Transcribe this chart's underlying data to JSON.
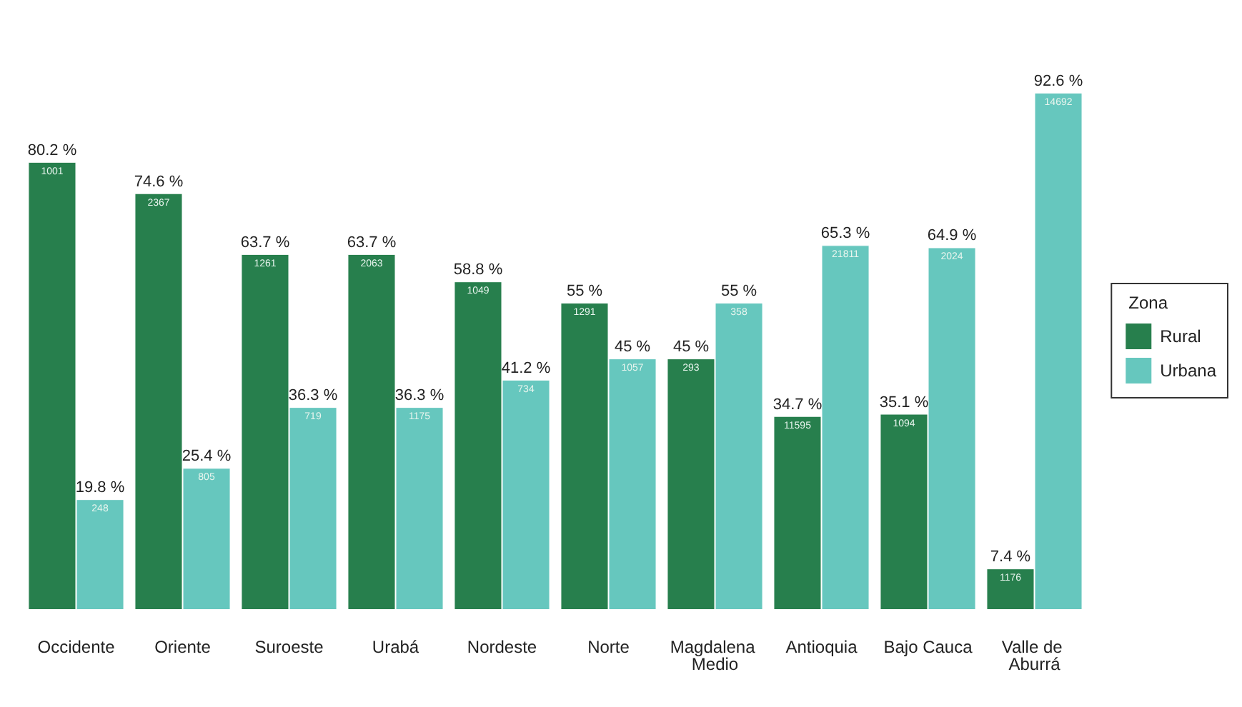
{
  "chart_data": {
    "type": "bar",
    "legend_title": "Zona",
    "legend": "right",
    "categories": [
      "Occidente",
      "Oriente",
      "Suroeste",
      "Urabá",
      "Nordeste",
      "Norte",
      "Magdalena Medio",
      "Antioquia",
      "Bajo Cauca",
      "Valle de Aburrá"
    ],
    "series": [
      {
        "name": "Rural",
        "color": "#277f4d",
        "values": [
          80.2,
          74.6,
          63.7,
          63.7,
          58.8,
          55,
          45,
          34.7,
          35.1,
          7.4
        ],
        "value_labels": [
          "80.2 %",
          "74.6 %",
          "63.7 %",
          "63.7 %",
          "58.8 %",
          "55 %",
          "45 %",
          "34.7 %",
          "35.1 %",
          "7.4 %"
        ]
      },
      {
        "name": "Urbana",
        "color": "#66c7be",
        "values": [
          19.8,
          25.4,
          36.3,
          36.3,
          41.2,
          45,
          55,
          65.3,
          64.9,
          92.6
        ],
        "value_labels": [
          "19.8 %",
          "25.4 %",
          "36.3 %",
          "36.3 %",
          "41.2 %",
          "45 %",
          "55 %",
          "65.3 %",
          "64.9 %",
          "92.6 %"
        ]
      }
    ],
    "annotations": [
      {
        "text": "1001",
        "x": "Occidente",
        "y": 80.2
      },
      {
        "text": "248",
        "x": "Occidente",
        "y": 19.8
      },
      {
        "text": "2367",
        "x": "Oriente",
        "y": 74.6
      },
      {
        "text": "805",
        "x": "Oriente",
        "y": 25.4
      },
      {
        "text": "1261",
        "x": "Suroeste",
        "y": 63.7
      },
      {
        "text": "719",
        "x": "Suroeste",
        "y": 36.3
      },
      {
        "text": "2063",
        "x": "Urabá",
        "y": 63.7
      },
      {
        "text": "1175",
        "x": "Urabá",
        "y": 36.3
      },
      {
        "text": "1049",
        "x": "Nordeste",
        "y": 58.8
      },
      {
        "text": "734",
        "x": "Nordeste",
        "y": 41.2
      },
      {
        "text": "1291",
        "x": "Norte",
        "y": 55
      },
      {
        "text": "1057",
        "x": "Norte",
        "y": 45
      },
      {
        "text": "293",
        "x": "Magdalena Medio",
        "y": 45
      },
      {
        "text": "358",
        "x": "Magdalena Medio",
        "y": 55
      },
      {
        "text": "11595",
        "x": "Antioquia",
        "y": 34.7
      },
      {
        "text": "21811",
        "x": "Antioquia",
        "y": 65.3
      },
      {
        "text": "1094",
        "x": "Bajo Cauca",
        "y": 35.1
      },
      {
        "text": "2024",
        "x": "Bajo Cauca",
        "y": 64.9
      },
      {
        "text": "1176",
        "x": "Valle de Aburrá",
        "y": 7.4
      },
      {
        "text": "14692",
        "x": "Valle de Aburrá",
        "y": 92.6
      }
    ]
  }
}
